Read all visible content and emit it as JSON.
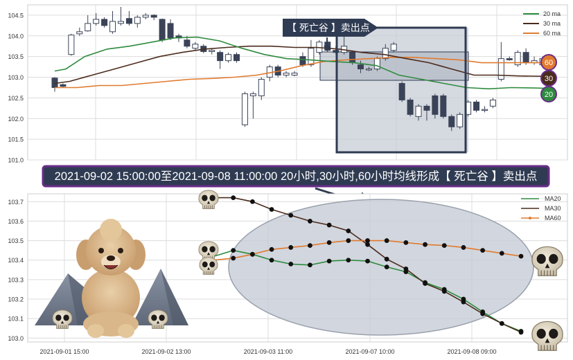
{
  "colors": {
    "ma20": "#2e8b3e",
    "ma30": "#4a2a1c",
    "ma60": "#e07a2e",
    "candle_down": "#3a4357",
    "candle_up_fill": "#ffffff",
    "grid": "#dcdcdc",
    "banner_bg": "#2f3b52",
    "banner_border": "#6a2c8a",
    "zone_fill": "#c7ccd6",
    "highlight_box": "#2f3b52"
  },
  "top_chart": {
    "marker_label": "【 死亡谷 】卖出点",
    "badge_60": "60",
    "badge_30": "30",
    "badge_20": "20"
  },
  "banner": {
    "text": "2021-09-02 15:00:00至2021-09-08 11:00:00 20小时,30小时,60小时均线形成【 死亡谷 】卖出点"
  },
  "chart_data": [
    {
      "type": "candlestick",
      "ylim": [
        101.0,
        104.75
      ],
      "yticks": [
        "101.0",
        "101.5",
        "102.0",
        "102.5",
        "103.0",
        "103.5",
        "104.0",
        "104.5"
      ],
      "legend": [
        "20 ma",
        "30 ma",
        "60 ma"
      ],
      "legend_position": "top-right",
      "grid": true,
      "candles": [
        [
          102.98,
          102.75,
          103.0,
          102.65
        ],
        [
          102.82,
          102.78,
          102.85,
          102.75
        ],
        [
          103.55,
          104.02,
          104.05,
          103.52
        ],
        [
          104.05,
          104.1,
          104.2,
          104.0
        ],
        [
          104.12,
          104.3,
          104.5,
          104.1
        ],
        [
          104.3,
          104.4,
          104.55,
          104.25
        ],
        [
          104.4,
          104.25,
          104.45,
          104.2
        ],
        [
          104.1,
          104.35,
          104.6,
          104.05
        ],
        [
          104.3,
          104.35,
          104.7,
          104.25
        ],
        [
          104.42,
          104.3,
          104.6,
          104.25
        ],
        [
          104.3,
          104.45,
          104.5,
          104.2
        ],
        [
          104.45,
          104.5,
          104.55,
          104.4
        ],
        [
          104.5,
          104.45,
          104.52,
          104.38
        ],
        [
          104.4,
          103.9,
          104.42,
          103.85
        ],
        [
          104.3,
          103.95,
          104.4,
          103.9
        ],
        [
          104.0,
          103.95,
          104.05,
          103.85
        ],
        [
          103.9,
          103.75,
          104.0,
          103.7
        ],
        [
          103.7,
          103.8,
          103.85,
          103.65
        ],
        [
          103.75,
          103.62,
          103.8,
          103.58
        ],
        [
          103.62,
          103.65,
          103.7,
          103.55
        ],
        [
          103.6,
          103.4,
          103.65,
          103.2
        ],
        [
          103.4,
          103.55,
          103.6,
          103.35
        ],
        [
          103.55,
          103.4,
          103.6,
          103.35
        ],
        [
          101.85,
          102.6,
          102.65,
          101.8
        ],
        [
          102.55,
          102.6,
          102.65,
          102.0
        ],
        [
          102.55,
          102.95,
          103.0,
          102.45
        ],
        [
          103.0,
          103.25,
          103.3,
          102.9
        ],
        [
          103.25,
          103.05,
          103.3,
          103.0
        ],
        [
          103.05,
          103.1,
          103.15,
          103.0
        ],
        [
          103.05,
          103.1,
          103.15,
          103.02
        ],
        [
          103.5,
          103.3,
          103.6,
          103.25
        ],
        [
          103.3,
          103.7,
          103.9,
          103.25
        ],
        [
          103.6,
          103.85,
          103.9,
          103.55
        ],
        [
          103.85,
          103.65,
          103.9,
          103.6
        ],
        [
          103.65,
          103.6,
          103.75,
          103.55
        ],
        [
          103.6,
          103.75,
          104.0,
          103.55
        ],
        [
          103.6,
          103.35,
          103.65,
          103.3
        ],
        [
          103.3,
          103.2,
          103.4,
          103.1
        ],
        [
          103.2,
          103.2,
          103.25,
          103.15
        ],
        [
          103.2,
          103.45,
          103.5,
          103.15
        ],
        [
          103.45,
          103.7,
          103.8,
          103.4
        ],
        [
          103.65,
          103.8,
          103.85,
          103.6
        ],
        [
          102.85,
          102.45,
          102.9,
          102.4
        ],
        [
          102.45,
          102.1,
          102.5,
          102.05
        ],
        [
          102.05,
          102.3,
          102.35,
          101.95
        ],
        [
          102.3,
          102.2,
          102.35,
          101.95
        ],
        [
          102.55,
          102.1,
          102.6,
          102.0
        ],
        [
          102.55,
          102.05,
          102.6,
          102.0
        ],
        [
          102.05,
          101.8,
          102.1,
          101.7
        ],
        [
          101.8,
          102.1,
          102.15,
          101.75
        ],
        [
          102.1,
          102.4,
          102.45,
          102.05
        ],
        [
          102.4,
          102.2,
          102.45,
          102.15
        ],
        [
          102.2,
          102.22,
          102.3,
          102.15
        ],
        [
          102.3,
          102.45,
          102.5,
          102.25
        ],
        [
          102.95,
          103.45,
          103.85,
          102.9
        ],
        [
          103.45,
          103.42,
          103.5,
          103.4
        ],
        [
          103.3,
          103.6,
          103.65,
          103.25
        ],
        [
          103.6,
          103.35,
          103.7,
          103.3
        ],
        [
          103.35,
          103.4,
          103.5,
          103.3
        ],
        [
          103.3,
          103.45,
          103.5,
          103.25
        ]
      ],
      "ma20": [
        [
          0,
          103.15
        ],
        [
          3,
          103.2
        ],
        [
          8,
          103.5
        ],
        [
          14,
          103.68
        ],
        [
          20,
          103.75
        ],
        [
          26,
          103.85
        ],
        [
          32,
          103.95
        ],
        [
          38,
          103.97
        ],
        [
          44,
          103.88
        ],
        [
          50,
          103.7
        ],
        [
          56,
          103.55
        ],
        [
          62,
          103.45
        ],
        [
          68,
          103.42
        ],
        [
          74,
          103.38
        ],
        [
          80,
          103.35
        ],
        [
          86,
          103.28
        ],
        [
          92,
          103.05
        ],
        [
          98,
          102.95
        ],
        [
          104,
          102.85
        ],
        [
          110,
          102.75
        ],
        [
          116,
          102.72
        ],
        [
          122,
          102.75
        ],
        [
          128,
          102.74
        ],
        [
          132,
          102.73
        ]
      ],
      "ma30": [
        [
          0,
          102.85
        ],
        [
          4,
          102.9
        ],
        [
          10,
          103.05
        ],
        [
          16,
          103.2
        ],
        [
          22,
          103.35
        ],
        [
          28,
          103.5
        ],
        [
          34,
          103.6
        ],
        [
          40,
          103.68
        ],
        [
          46,
          103.72
        ],
        [
          52,
          103.75
        ],
        [
          58,
          103.75
        ],
        [
          64,
          103.72
        ],
        [
          70,
          103.72
        ],
        [
          76,
          103.68
        ],
        [
          82,
          103.6
        ],
        [
          88,
          103.55
        ],
        [
          94,
          103.45
        ],
        [
          100,
          103.35
        ],
        [
          106,
          103.2
        ],
        [
          112,
          103.05
        ],
        [
          118,
          103.05
        ],
        [
          124,
          103.03
        ],
        [
          132,
          103.02
        ]
      ],
      "ma60": [
        [
          0,
          102.75
        ],
        [
          6,
          102.75
        ],
        [
          12,
          102.8
        ],
        [
          18,
          102.8
        ],
        [
          24,
          102.85
        ],
        [
          30,
          102.9
        ],
        [
          36,
          102.95
        ],
        [
          42,
          102.97
        ],
        [
          48,
          103.0
        ],
        [
          54,
          103.05
        ],
        [
          60,
          103.15
        ],
        [
          66,
          103.28
        ],
        [
          72,
          103.38
        ],
        [
          78,
          103.42
        ],
        [
          84,
          103.45
        ],
        [
          90,
          103.48
        ],
        [
          96,
          103.48
        ],
        [
          102,
          103.45
        ],
        [
          108,
          103.42
        ],
        [
          114,
          103.35
        ],
        [
          120,
          103.35
        ],
        [
          126,
          103.35
        ],
        [
          132,
          103.35
        ]
      ]
    },
    {
      "type": "line",
      "ylim": [
        102.98,
        103.74
      ],
      "yticks": [
        "103.0",
        "103.1",
        "103.2",
        "103.3",
        "103.4",
        "103.5",
        "103.6",
        "103.7"
      ],
      "xtick_labels": [
        "2021-09-01 15:00",
        "2021-09-02 13:00",
        "2021-09-03 11:00",
        "2021-09-07 10:00",
        "2021-09-08 09:00"
      ],
      "legend_position": "top-right",
      "grid": true,
      "series": [
        {
          "name": "MA20",
          "color": "#2e8b3e",
          "values": [
            103.42,
            103.45,
            103.43,
            103.4,
            103.38,
            103.375,
            103.395,
            103.4,
            103.395,
            103.365,
            103.34,
            103.285,
            103.25,
            103.2,
            103.135,
            103.075,
            103.035
          ]
        },
        {
          "name": "MA30",
          "color": "#4a2a1c",
          "values": [
            103.72,
            103.72,
            103.7,
            103.66,
            103.63,
            103.6,
            103.58,
            103.55,
            103.48,
            103.405,
            103.355,
            103.28,
            103.24,
            103.185,
            103.125,
            103.075,
            103.03
          ]
        },
        {
          "name": "MA60",
          "color": "#e07a2e",
          "values": [
            103.4,
            103.41,
            103.43,
            103.455,
            103.465,
            103.475,
            103.49,
            103.5,
            103.5,
            103.5,
            103.49,
            103.48,
            103.475,
            103.465,
            103.45,
            103.435,
            103.42
          ]
        }
      ]
    }
  ]
}
